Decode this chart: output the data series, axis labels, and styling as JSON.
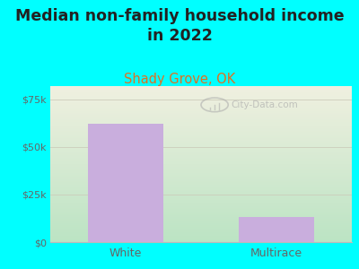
{
  "title": "Median non-family household income\nin 2022",
  "subtitle": "Shady Grove, OK",
  "categories": [
    "White",
    "Multirace"
  ],
  "values": [
    62000,
    13000
  ],
  "bar_color": "#c9aedd",
  "background_color": "#00FFFF",
  "plot_bg_top": "#f0f0e0",
  "plot_bg_bottom": "#c8e8cc",
  "yticks": [
    0,
    25000,
    50000,
    75000
  ],
  "ytick_labels": [
    "$0",
    "$25k",
    "$50k",
    "$75k"
  ],
  "ylim": [
    0,
    82000
  ],
  "title_fontsize": 12.5,
  "subtitle_fontsize": 10.5,
  "subtitle_color": "#e07020",
  "tick_color": "#666666",
  "watermark": "City-Data.com",
  "grid_color": "#ddddcc",
  "bar_width": 0.5
}
